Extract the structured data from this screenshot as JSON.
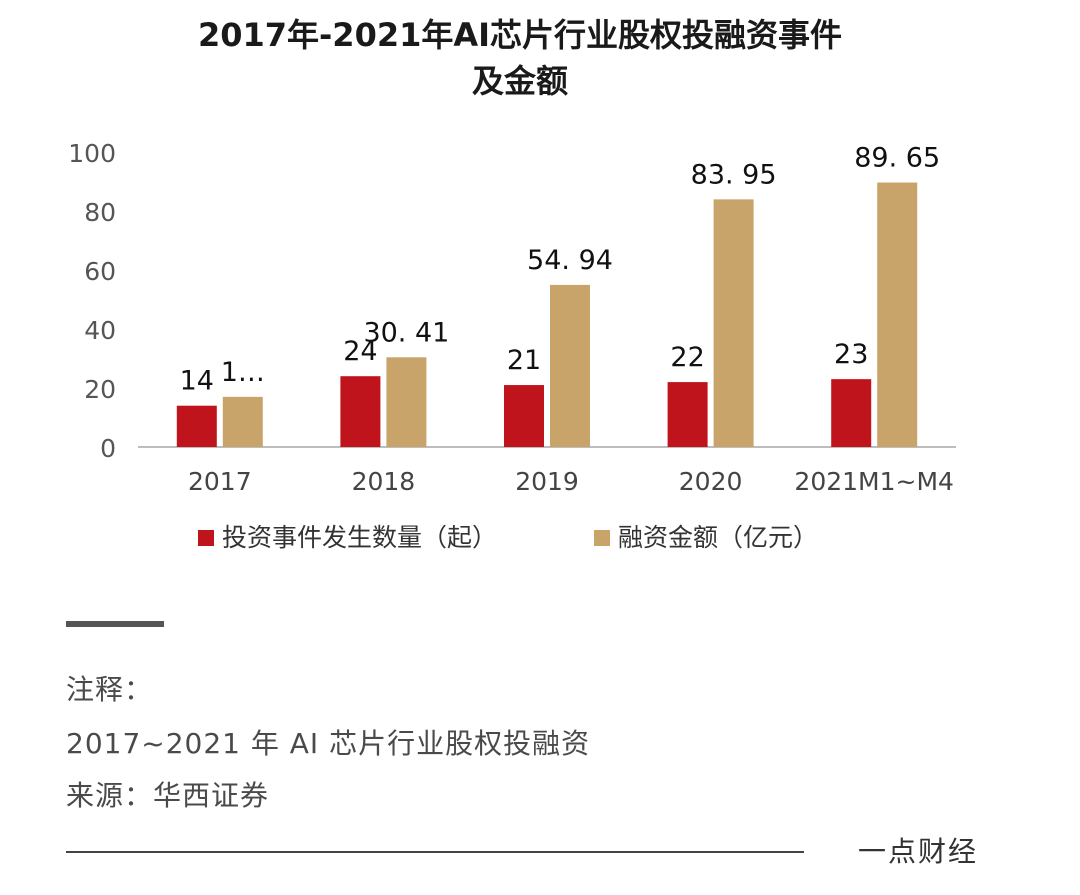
{
  "chart_data": {
    "type": "bar",
    "title_line1": "2017年-2021年AI芯片行业股权投融资事件",
    "title_line2": "及金额",
    "categories": [
      "2017",
      "2018",
      "2019",
      "2020",
      "2021M1~M4"
    ],
    "series": [
      {
        "name": "投资事件发生数量（起）",
        "color": "#c0141c",
        "values": [
          14,
          24,
          21,
          22,
          23
        ],
        "labels": [
          "14",
          "24",
          "21",
          "22",
          "23"
        ]
      },
      {
        "name": "融资金额（亿元）",
        "color": "#c9a46a",
        "values": [
          17,
          30.41,
          54.94,
          83.95,
          89.65
        ],
        "labels": [
          "1…",
          "30. 41",
          "54. 94",
          "83. 95",
          "89. 65"
        ]
      }
    ],
    "ylim": [
      0,
      100
    ],
    "yticks": [
      "0",
      "20",
      "40",
      "60",
      "80",
      "100"
    ],
    "legend_position": "bottom"
  },
  "notes": {
    "heading": "注释：",
    "line1": "2017~2021 年 AI 芯片行业股权投融资",
    "line2": "来源：华西证券"
  },
  "brand": "一点财经"
}
